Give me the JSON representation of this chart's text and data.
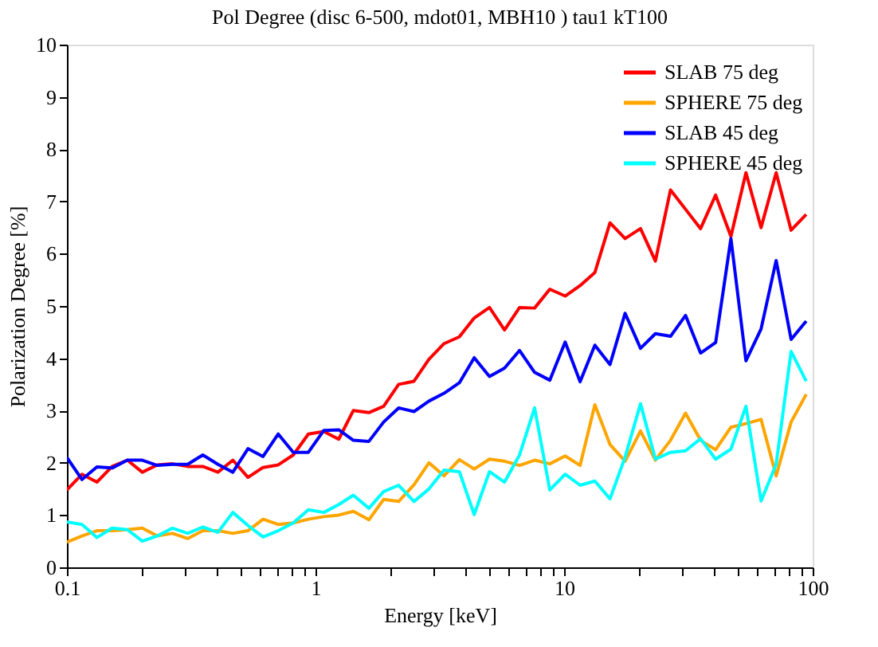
{
  "chart_data": {
    "type": "line",
    "title": "Pol Degree (disc 6-500, mdot01, MBH10 ) tau1 kT100",
    "xlabel": "Energy [keV]",
    "ylabel": "Polarization Degree [%]",
    "x": [
      0.1,
      0.115,
      0.132,
      0.152,
      0.175,
      0.201,
      0.231,
      0.266,
      0.306,
      0.352,
      0.405,
      0.465,
      0.535,
      0.615,
      0.708,
      0.814,
      0.936,
      1.08,
      1.24,
      1.42,
      1.64,
      1.88,
      2.16,
      2.49,
      2.86,
      3.29,
      3.79,
      4.35,
      5.01,
      5.76,
      6.62,
      7.61,
      8.76,
      10.1,
      11.6,
      13.3,
      15.3,
      17.6,
      20.3,
      23.3,
      26.8,
      30.8,
      35.4,
      40.7,
      46.9,
      53.9,
      62.0,
      71.3,
      81.9,
      94.2
    ],
    "series": [
      {
        "name": "SLAB 75 deg",
        "color": "#ff0000",
        "values": [
          1.48,
          1.78,
          1.63,
          1.93,
          2.05,
          1.82,
          1.96,
          1.98,
          1.93,
          1.93,
          1.82,
          2.05,
          1.72,
          1.91,
          1.96,
          2.15,
          2.55,
          2.6,
          2.45,
          3.0,
          2.96,
          3.08,
          3.5,
          3.56,
          3.98,
          4.28,
          4.41,
          4.77,
          4.97,
          4.54,
          4.97,
          4.96,
          5.32,
          5.19,
          5.39,
          5.64,
          6.59,
          6.29,
          6.48,
          5.86,
          7.22,
          6.85,
          6.48,
          7.12,
          6.33,
          7.55,
          6.5,
          7.55,
          6.45,
          6.75
        ]
      },
      {
        "name": "SPHERE 75 deg",
        "color": "#ffa500",
        "values": [
          0.48,
          0.6,
          0.7,
          0.7,
          0.72,
          0.75,
          0.6,
          0.65,
          0.55,
          0.7,
          0.7,
          0.65,
          0.7,
          0.92,
          0.82,
          0.85,
          0.92,
          0.97,
          1.0,
          1.07,
          0.91,
          1.3,
          1.26,
          1.58,
          2.0,
          1.75,
          2.06,
          1.88,
          2.07,
          2.03,
          1.95,
          2.05,
          1.98,
          2.13,
          1.95,
          3.11,
          2.35,
          2.03,
          2.61,
          2.05,
          2.43,
          2.95,
          2.43,
          2.25,
          2.68,
          2.75,
          2.83,
          1.75,
          2.78,
          3.31
        ]
      },
      {
        "name": "SLAB 45 deg",
        "color": "#0000ff",
        "values": [
          2.1,
          1.68,
          1.92,
          1.9,
          2.05,
          2.05,
          1.95,
          1.97,
          1.97,
          2.15,
          1.97,
          1.82,
          2.27,
          2.12,
          2.55,
          2.2,
          2.2,
          2.62,
          2.63,
          2.43,
          2.41,
          2.78,
          3.05,
          2.98,
          3.18,
          3.33,
          3.53,
          4.01,
          3.65,
          3.81,
          4.15,
          3.73,
          3.58,
          4.31,
          3.55,
          4.25,
          3.88,
          4.86,
          4.19,
          4.47,
          4.42,
          4.82,
          4.1,
          4.3,
          6.29,
          3.95,
          4.56,
          5.87,
          4.36,
          4.71
        ]
      },
      {
        "name": "SPHERE 45 deg",
        "color": "#00ffff",
        "values": [
          0.87,
          0.82,
          0.57,
          0.75,
          0.72,
          0.5,
          0.6,
          0.75,
          0.65,
          0.77,
          0.67,
          1.05,
          0.8,
          0.58,
          0.7,
          0.85,
          1.1,
          1.05,
          1.2,
          1.38,
          1.13,
          1.45,
          1.57,
          1.26,
          1.5,
          1.86,
          1.83,
          1.01,
          1.83,
          1.63,
          2.15,
          3.05,
          1.48,
          1.78,
          1.57,
          1.65,
          1.31,
          2.11,
          3.13,
          2.07,
          2.2,
          2.23,
          2.46,
          2.07,
          2.26,
          3.08,
          1.27,
          1.97,
          4.13,
          3.56
        ]
      }
    ],
    "log": "x",
    "xlim": [
      0.1,
      100
    ],
    "ylim": [
      0,
      10
    ],
    "xticks": [
      0.1,
      {
        "value": 0.2,
        "label": null
      },
      {
        "value": 0.3,
        "label": null
      },
      {
        "value": 0.4,
        "label": null
      },
      {
        "value": 0.5,
        "label": null
      },
      {
        "value": 0.6,
        "label": null
      },
      {
        "value": 0.7,
        "label": null
      },
      {
        "value": 0.8,
        "label": null
      },
      {
        "value": 0.9,
        "label": null
      },
      1,
      {
        "value": 2,
        "label": null
      },
      {
        "value": 3,
        "label": null
      },
      {
        "value": 4,
        "label": null
      },
      {
        "value": 5,
        "label": null
      },
      {
        "value": 6,
        "label": null
      },
      {
        "value": 7,
        "label": null
      },
      {
        "value": 8,
        "label": null
      },
      {
        "value": 9,
        "label": null
      },
      10,
      {
        "value": 20,
        "label": null
      },
      {
        "value": 30,
        "label": null
      },
      {
        "value": 40,
        "label": null
      },
      {
        "value": 50,
        "label": null
      },
      {
        "value": 60,
        "label": null
      },
      {
        "value": 70,
        "label": null
      },
      {
        "value": 80,
        "label": null
      },
      {
        "value": 90,
        "label": null
      },
      100
    ],
    "yticks": [
      0,
      1,
      2,
      3,
      4,
      5,
      6,
      7,
      8,
      9,
      10
    ],
    "grid": false,
    "legend": "top right",
    "marker": "none",
    "line_style": "solid"
  }
}
